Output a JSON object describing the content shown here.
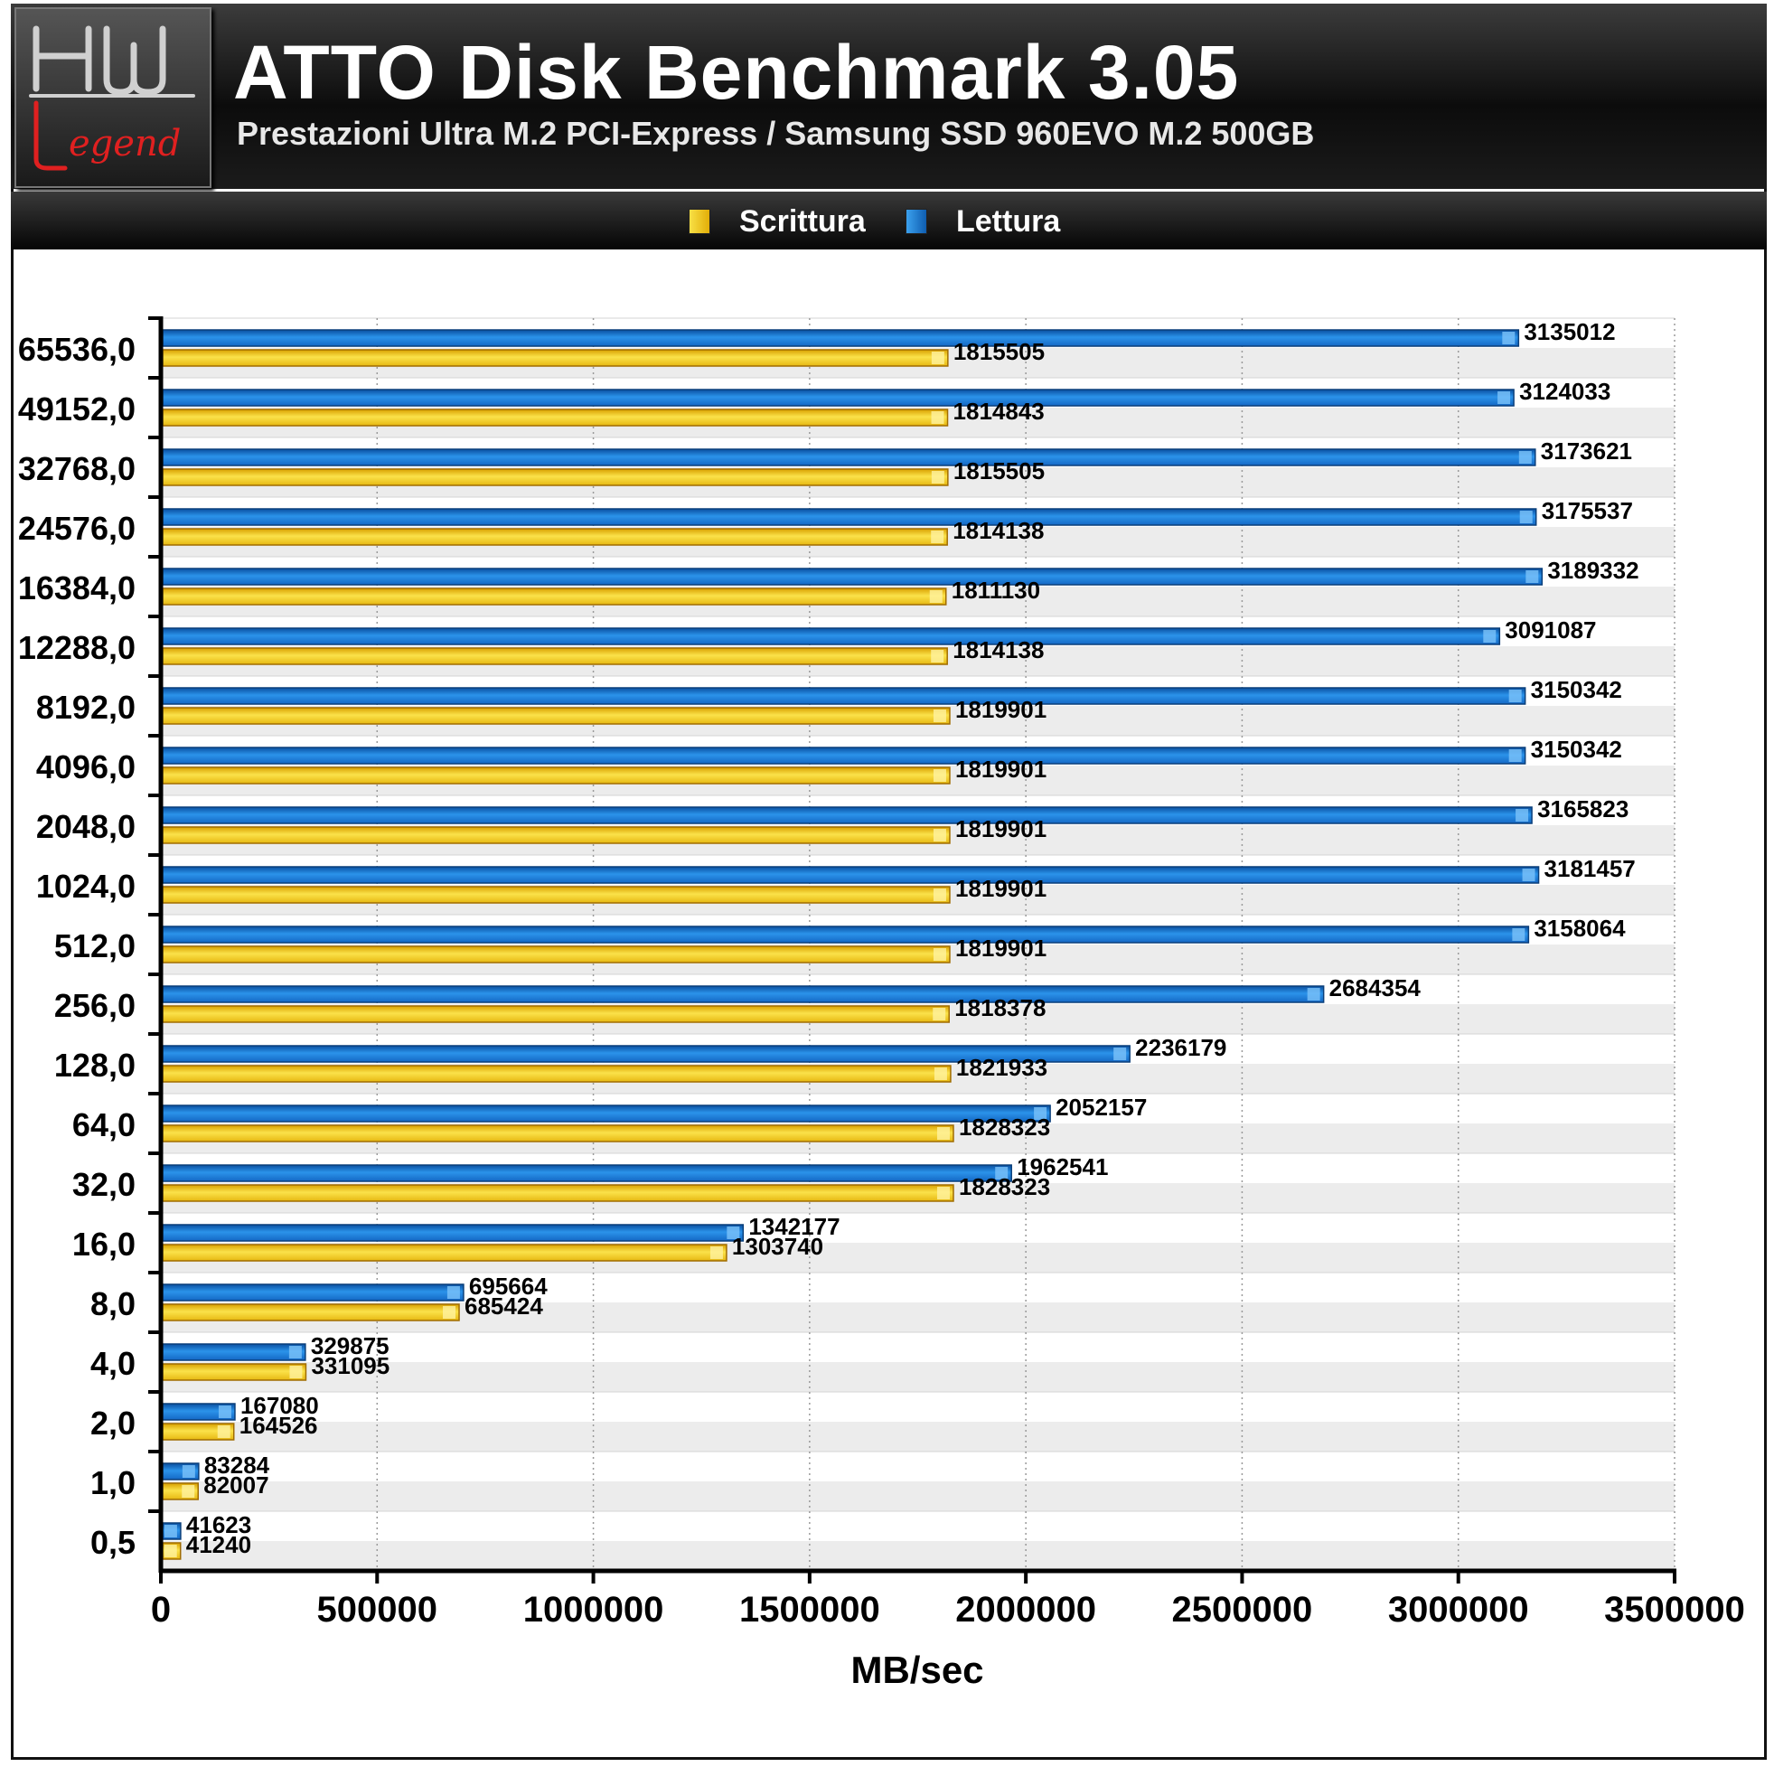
{
  "header": {
    "logo_text": "HW Legend",
    "title": "ATTO Disk Benchmark 3.05",
    "subtitle": "Prestazioni Ultra M.2 PCI-Express / Samsung SSD 960EVO M.2 500GB"
  },
  "legend": {
    "items": [
      {
        "label": "Scrittura",
        "color": "#f5d21e"
      },
      {
        "label": "Lettura",
        "color": "#1f88e0"
      }
    ],
    "placement": "top-center"
  },
  "chart_data": {
    "type": "bar",
    "orientation": "horizontal",
    "categories": [
      "65536,0",
      "49152,0",
      "32768,0",
      "24576,0",
      "16384,0",
      "12288,0",
      "8192,0",
      "4096,0",
      "2048,0",
      "1024,0",
      "512,0",
      "256,0",
      "128,0",
      "64,0",
      "32,0",
      "16,0",
      "8,0",
      "4,0",
      "2,0",
      "1,0",
      "0,5"
    ],
    "series": [
      {
        "name": "Lettura",
        "color": "#1f88e0",
        "values": [
          3135012,
          3124033,
          3173621,
          3175537,
          3189332,
          3091087,
          3150342,
          3150342,
          3165823,
          3181457,
          3158064,
          2684354,
          2236179,
          2052157,
          1962541,
          1342177,
          695664,
          329875,
          167080,
          83284,
          41623
        ]
      },
      {
        "name": "Scrittura",
        "color": "#f5d21e",
        "values": [
          1815505,
          1814843,
          1815505,
          1814138,
          1811130,
          1814138,
          1819901,
          1819901,
          1819901,
          1819901,
          1819901,
          1818378,
          1821933,
          1828323,
          1828323,
          1303740,
          685424,
          331095,
          164526,
          82007,
          41240
        ]
      }
    ],
    "xlabel": "MB/sec",
    "ylabel": "",
    "xlim": [
      0,
      3500000
    ],
    "xticks": [
      "0",
      "500000",
      "1000000",
      "1500000",
      "2000000",
      "2500000",
      "3000000",
      "3500000"
    ],
    "grid": "vertical dotted, alternating row bands"
  }
}
